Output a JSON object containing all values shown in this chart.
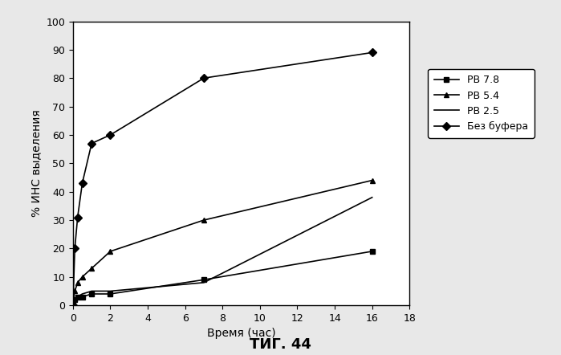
{
  "title": "ΤИГ. 44",
  "xlabel": "Время (час)",
  "ylabel": "% ИНС выделения",
  "xlim": [
    0,
    18
  ],
  "ylim": [
    0,
    100
  ],
  "xticks": [
    0,
    2,
    4,
    6,
    8,
    10,
    12,
    14,
    16,
    18
  ],
  "yticks": [
    0,
    10,
    20,
    30,
    40,
    50,
    60,
    70,
    80,
    90,
    100
  ],
  "series": [
    {
      "label": "РВ 7.8",
      "x": [
        0,
        0.1,
        0.25,
        0.5,
        1,
        2,
        7,
        16
      ],
      "y": [
        0,
        2,
        3,
        3,
        4,
        4,
        9,
        19
      ],
      "marker": "s",
      "linestyle": "-"
    },
    {
      "label": "РВ 5.4",
      "x": [
        0,
        0.1,
        0.25,
        0.5,
        1,
        2,
        7,
        16
      ],
      "y": [
        0,
        5,
        8,
        10,
        13,
        19,
        30,
        44
      ],
      "marker": "^",
      "linestyle": "-"
    },
    {
      "label": "РВ 2.5",
      "x": [
        0,
        0.1,
        0.25,
        0.5,
        1,
        2,
        7,
        16
      ],
      "y": [
        0,
        2,
        3,
        4,
        5,
        5,
        8,
        38
      ],
      "marker": "",
      "linestyle": "-"
    },
    {
      "label": "Без буфера",
      "x": [
        0,
        0.1,
        0.25,
        0.5,
        1,
        2,
        7,
        16
      ],
      "y": [
        0,
        20,
        31,
        43,
        57,
        60,
        80,
        89
      ],
      "marker": "D",
      "linestyle": "-"
    }
  ],
  "background_color": "#ffffff",
  "fig_facecolor": "#e8e8e8"
}
